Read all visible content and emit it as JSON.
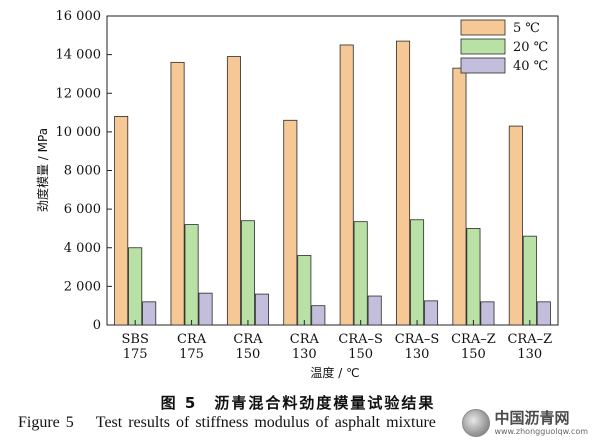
{
  "chart_data": {
    "type": "bar",
    "ylabel": "劲度模量 / MPa",
    "xlabel": "温度 / ℃",
    "ylim": [
      0,
      16000
    ],
    "yticks": [
      "0",
      "2 000",
      "4 000",
      "6 000",
      "8 000",
      "10 000",
      "12 000",
      "14 000",
      "16 000"
    ],
    "categories": [
      [
        "SBS",
        "175"
      ],
      [
        "CRA",
        "175"
      ],
      [
        "CRA",
        "150"
      ],
      [
        "CRA",
        "130"
      ],
      [
        "CRA–S",
        "150"
      ],
      [
        "CRA–S",
        "130"
      ],
      [
        "CRA–Z",
        "150"
      ],
      [
        "CRA–Z",
        "130"
      ]
    ],
    "series": [
      {
        "name": "5 ℃",
        "color": "#f5c896",
        "values": [
          10800,
          13600,
          13900,
          10600,
          14500,
          14700,
          13300,
          10300
        ]
      },
      {
        "name": "20 ℃",
        "color": "#b9e0a5",
        "values": [
          4000,
          5200,
          5400,
          3600,
          5350,
          5450,
          5000,
          4600
        ]
      },
      {
        "name": "40 ℃",
        "color": "#c3bedc",
        "values": [
          1200,
          1650,
          1600,
          1000,
          1500,
          1250,
          1200,
          1200
        ]
      }
    ],
    "legend": "top-right",
    "grid": false
  },
  "caption": {
    "cn": "图 5　沥青混合料劲度模量试验结果",
    "en_fig": "Figure 5",
    "en_text": "Test results of stiffness modulus of asphalt mixture"
  },
  "watermark": {
    "text": "中国沥青网",
    "url": "www.zhongguolqw.com",
    "icon": "asphalt-drop-logo-icon"
  }
}
